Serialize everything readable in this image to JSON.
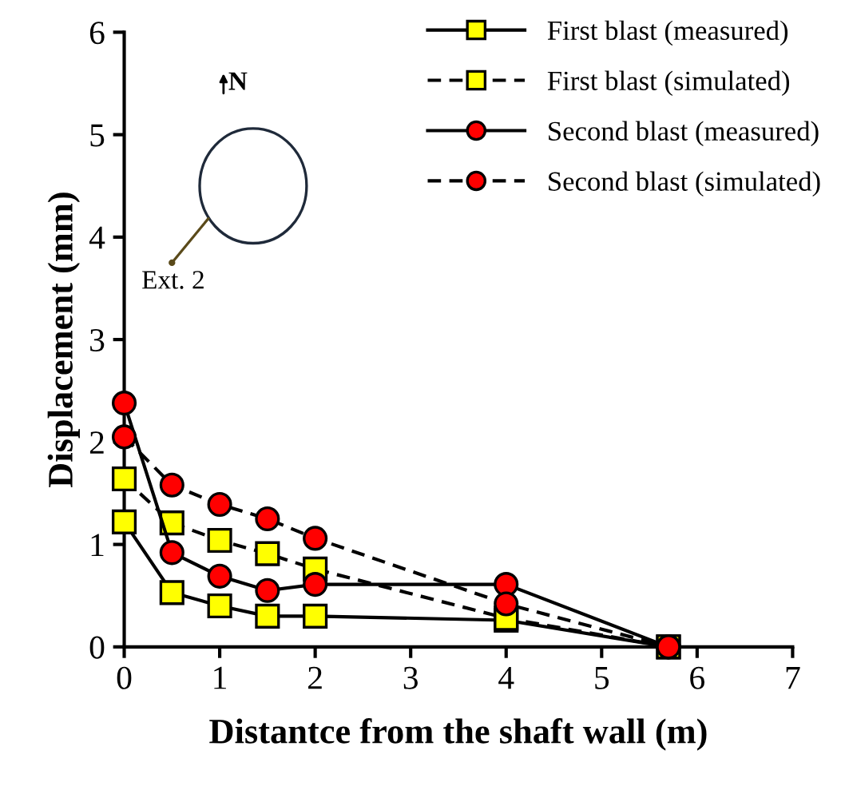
{
  "chart_data": {
    "type": "line",
    "xlabel": "Distantce from the shaft wall (m)",
    "ylabel": "Displacement (mm)",
    "xlim": [
      0,
      7
    ],
    "xticks": [
      0,
      1,
      2,
      3,
      4,
      5,
      6,
      7
    ],
    "ylim": [
      0,
      6
    ],
    "yticks": [
      0,
      1,
      2,
      3,
      4,
      5,
      6
    ],
    "grid": false,
    "legend": "top right",
    "annotations": [
      "N",
      "Ext. 2"
    ],
    "series": [
      {
        "name": "First blast (measured)",
        "color": "#ffff00",
        "marker": "square",
        "line_style": "solid",
        "x": [
          0,
          0.5,
          1,
          1.5,
          2,
          4,
          5.7
        ],
        "values": [
          1.22,
          0.53,
          0.4,
          0.3,
          0.3,
          0.26,
          0
        ]
      },
      {
        "name": "First blast (simulated)",
        "color": "#ffff00",
        "marker": "square",
        "line_style": "dashed",
        "x": [
          0,
          0.5,
          1,
          1.5,
          2,
          4,
          5.7
        ],
        "values": [
          1.64,
          1.21,
          1.04,
          0.91,
          0.76,
          0.28,
          0
        ]
      },
      {
        "name": "Second blast (measured)",
        "color": "#ff0000",
        "marker": "circle",
        "line_style": "solid",
        "x": [
          0,
          0.5,
          1,
          1.5,
          2,
          4,
          5.7
        ],
        "values": [
          2.38,
          0.92,
          0.69,
          0.55,
          0.61,
          0.61,
          0
        ]
      },
      {
        "name": "Second blast (simulated)",
        "color": "#ff0000",
        "marker": "circle",
        "line_style": "dashed",
        "x": [
          0,
          0.5,
          1,
          1.5,
          2,
          4,
          5.7
        ],
        "values": [
          2.05,
          1.58,
          1.39,
          1.25,
          1.06,
          0.42,
          0
        ]
      }
    ]
  }
}
